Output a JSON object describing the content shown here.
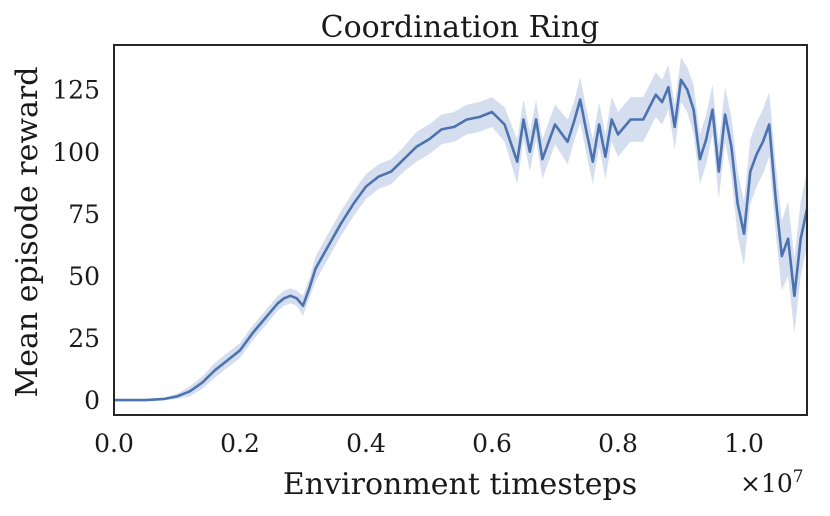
{
  "chart_data": {
    "type": "line",
    "title": "Coordination Ring",
    "xlabel": "Environment timesteps",
    "ylabel": "Mean episode reward",
    "x_offset_label": "×10",
    "x_offset_exponent": "7",
    "xlim": [
      0.0,
      1.1
    ],
    "ylim": [
      -6,
      143
    ],
    "x_ticks": [
      0.0,
      0.2,
      0.4,
      0.6,
      0.8,
      1.0
    ],
    "x_tick_labels": [
      "0.0",
      "0.2",
      "0.4",
      "0.6",
      "0.8",
      "1.0"
    ],
    "y_ticks": [
      0,
      25,
      50,
      75,
      100,
      125
    ],
    "y_tick_labels": [
      "0",
      "25",
      "50",
      "75",
      "100",
      "125"
    ],
    "grid": false,
    "colors": {
      "line": "#4c72b0",
      "band": "#c9d6ea",
      "frame": "#262626"
    },
    "series": [
      {
        "x": [
          0.0,
          0.05,
          0.08,
          0.1,
          0.12,
          0.14,
          0.16,
          0.18,
          0.2,
          0.22,
          0.24,
          0.26,
          0.27,
          0.28,
          0.29,
          0.3,
          0.31,
          0.32,
          0.34,
          0.36,
          0.38,
          0.4,
          0.42,
          0.44,
          0.46,
          0.48,
          0.5,
          0.52,
          0.54,
          0.56,
          0.58,
          0.6,
          0.62,
          0.64,
          0.65,
          0.66,
          0.67,
          0.68,
          0.7,
          0.72,
          0.73,
          0.74,
          0.75,
          0.76,
          0.77,
          0.78,
          0.79,
          0.8,
          0.82,
          0.84,
          0.86,
          0.87,
          0.88,
          0.89,
          0.9,
          0.91,
          0.92,
          0.93,
          0.94,
          0.95,
          0.96,
          0.97,
          0.98,
          0.99,
          1.0,
          1.01,
          1.02,
          1.03,
          1.04,
          1.05,
          1.06,
          1.07,
          1.08,
          1.09,
          1.1
        ],
        "y": [
          0,
          0,
          0.5,
          1.5,
          3.5,
          7,
          12,
          16,
          20,
          27,
          33,
          39,
          41,
          42,
          41,
          38,
          45,
          53,
          62,
          71,
          79,
          86,
          90,
          92,
          97,
          102,
          105,
          109,
          110,
          113,
          114,
          116,
          111,
          96,
          113,
          100,
          113,
          97,
          111,
          104,
          112,
          121,
          108,
          96,
          111,
          98,
          113,
          107,
          113,
          113,
          123,
          120,
          126,
          110,
          129,
          125,
          117,
          97,
          105,
          117,
          92,
          115,
          102,
          79,
          67,
          92,
          99,
          104,
          111,
          82,
          58,
          65,
          42,
          65,
          77
        ],
        "band": [
          0,
          0,
          0.5,
          1,
          2,
          2.5,
          3,
          3,
          3,
          3,
          3,
          3,
          3,
          3,
          3,
          4,
          4,
          5,
          5,
          5,
          5,
          5,
          5,
          5,
          5,
          6,
          6,
          6,
          6,
          6,
          6,
          6,
          7,
          9,
          8,
          8,
          8,
          8,
          8,
          9,
          8,
          9,
          9,
          9,
          9,
          9,
          9,
          9,
          9,
          9,
          9,
          9,
          9,
          9,
          9,
          9,
          10,
          10,
          10,
          10,
          11,
          11,
          12,
          13,
          13,
          13,
          13,
          13,
          13,
          14,
          14,
          15,
          15,
          15,
          15
        ]
      }
    ]
  }
}
